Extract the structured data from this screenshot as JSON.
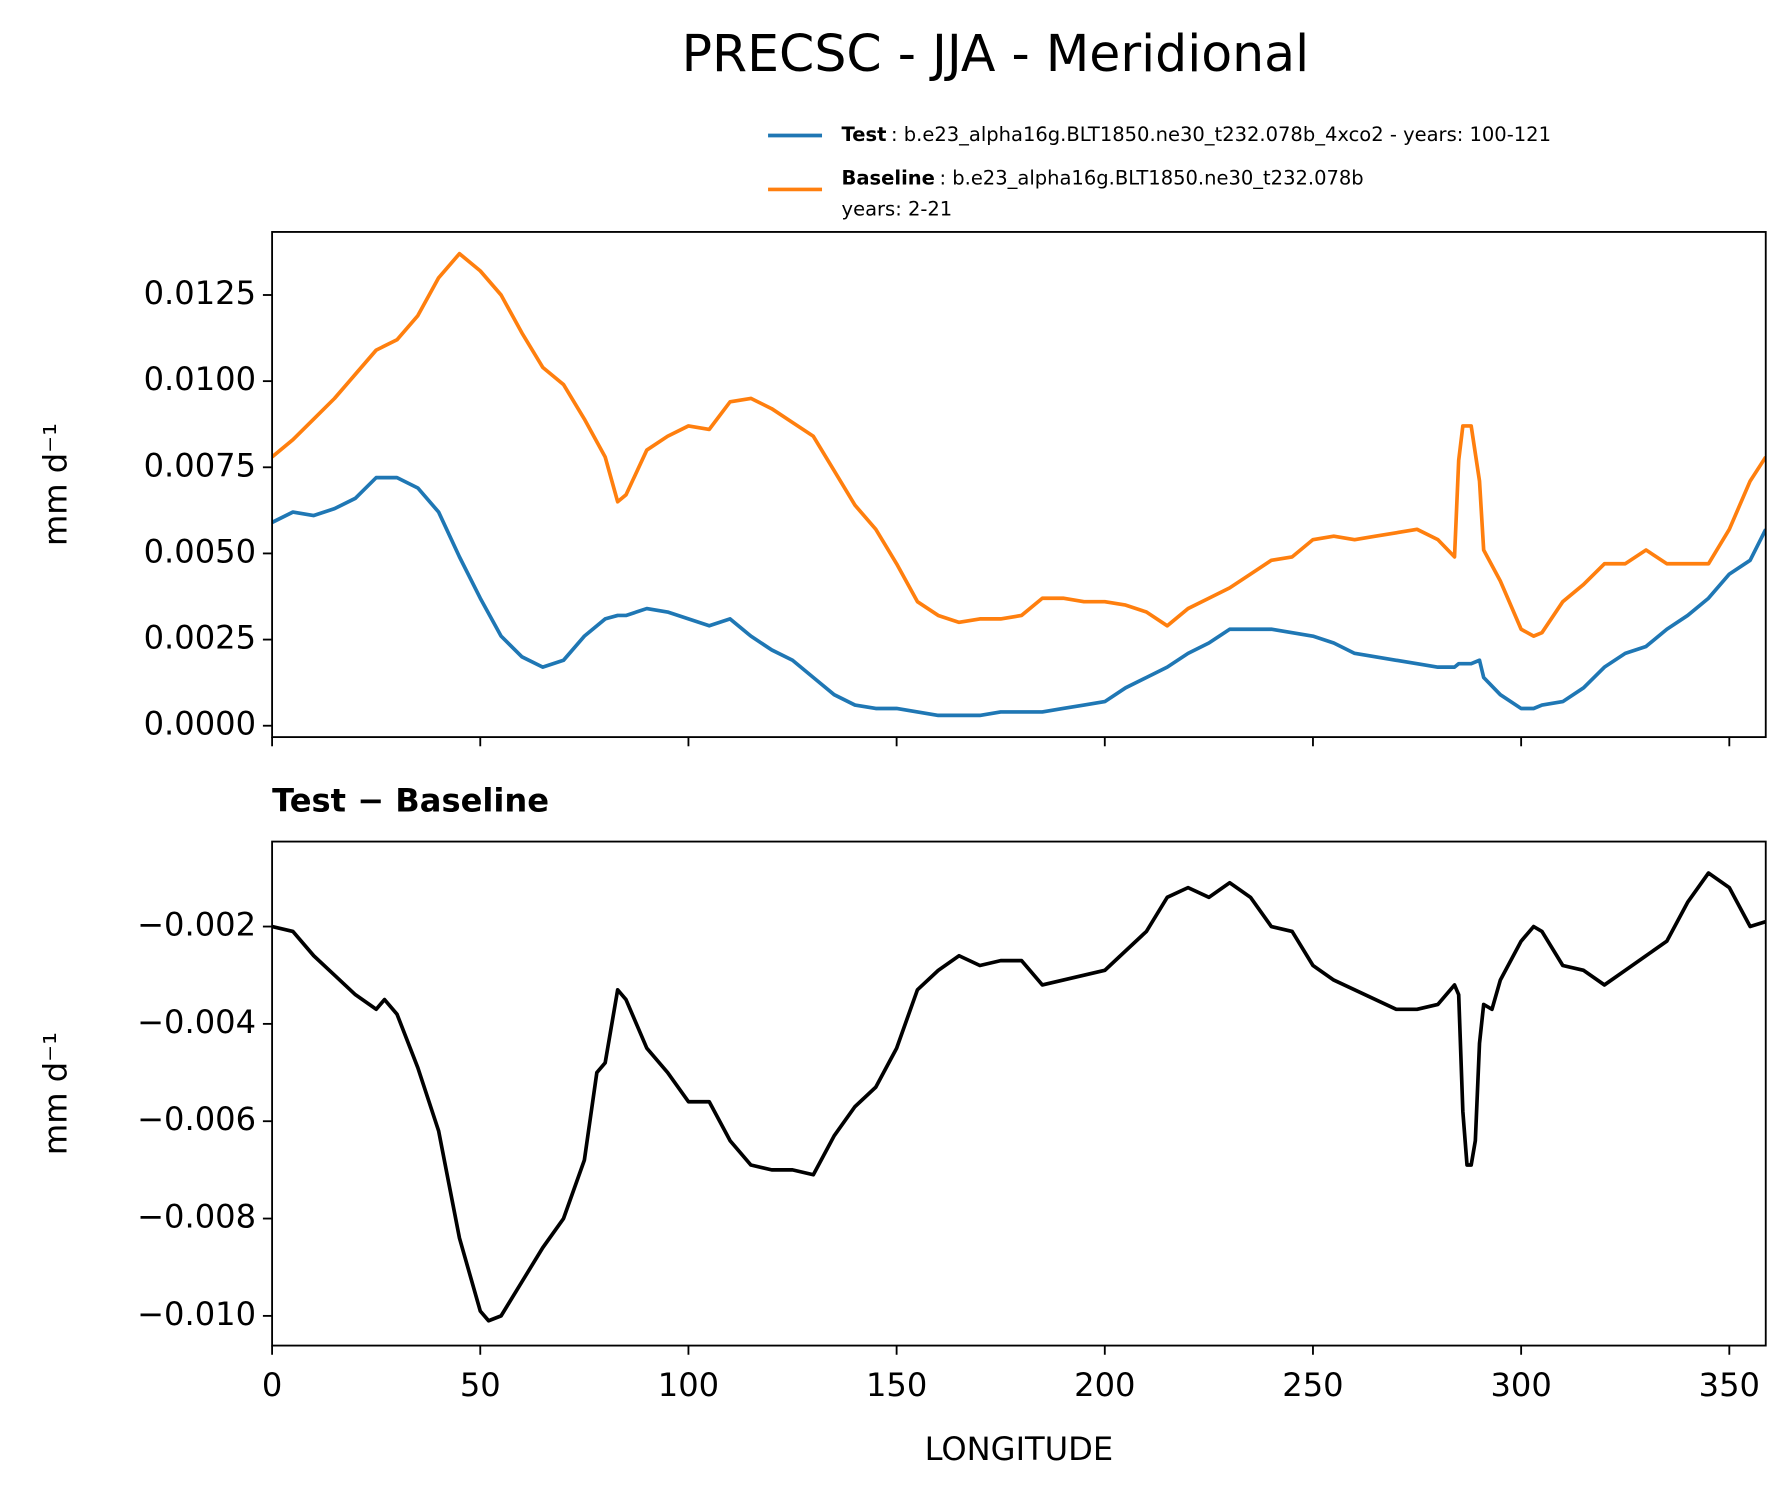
{
  "chart_data": [
    {
      "type": "line",
      "title": "PRECSC - JJA - Meridional",
      "ylabel": "mm d⁻¹",
      "x": [
        0,
        5,
        10,
        15,
        20,
        25,
        30,
        35,
        40,
        45,
        50,
        55,
        60,
        65,
        70,
        75,
        80,
        83,
        85,
        90,
        95,
        100,
        105,
        110,
        115,
        120,
        125,
        130,
        135,
        140,
        145,
        150,
        155,
        160,
        165,
        170,
        175,
        180,
        185,
        190,
        195,
        200,
        205,
        210,
        215,
        220,
        225,
        230,
        235,
        240,
        245,
        250,
        255,
        260,
        265,
        270,
        275,
        280,
        284,
        285,
        286,
        288,
        290,
        291,
        295,
        300,
        303,
        305,
        310,
        315,
        320,
        325,
        330,
        335,
        340,
        345,
        350,
        355,
        358.75
      ],
      "xlim": [
        0,
        358.75
      ],
      "ylim": [
        -0.00033,
        0.01433
      ],
      "yticks": [
        {
          "value": 0,
          "label": "0.0000"
        },
        0.0025,
        {
          "value": 0.005,
          "label": "0.0050"
        },
        0.0075,
        {
          "value": 0.01,
          "label": "0.0100"
        },
        0.0125
      ],
      "series": [
        {
          "name": "Test",
          "description": [
            ": b.e23_alpha16g.BLT1850.ne30_t232.078b_4xco2 - years: 100-121"
          ],
          "color": "#1f77b4",
          "values": [
            0.0059,
            0.0062,
            0.0061,
            0.0063,
            0.0066,
            0.0072,
            0.0072,
            0.0069,
            0.0062,
            0.0049,
            0.0037,
            0.0026,
            0.002,
            0.0017,
            0.0019,
            0.0026,
            0.0031,
            0.0032,
            0.0032,
            0.0034,
            0.0033,
            0.0031,
            0.0029,
            0.0031,
            0.0026,
            0.0022,
            0.0019,
            0.0014,
            0.0009,
            0.0006,
            0.0005,
            0.0005,
            0.0004,
            0.0003,
            0.0003,
            0.0003,
            0.0004,
            0.0004,
            0.0004,
            0.0005,
            0.0006,
            0.0007,
            0.0011,
            0.0014,
            0.0017,
            0.0021,
            0.0024,
            0.0028,
            0.0028,
            0.0028,
            0.0027,
            0.0026,
            0.0024,
            0.0021,
            0.002,
            0.0019,
            0.0018,
            0.0017,
            0.0017,
            0.0018,
            0.0018,
            0.0018,
            0.0019,
            0.0014,
            0.0009,
            0.0005,
            0.0005,
            0.0006,
            0.0007,
            0.0011,
            0.0017,
            0.0021,
            0.0023,
            0.0028,
            0.0032,
            0.0037,
            0.0044,
            0.0048,
            0.0057
          ]
        },
        {
          "name": "Baseline",
          "description": [
            ": b.e23_alpha16g.BLT1850.ne30_t232.078b",
            "years: 2-21"
          ],
          "color": "#ff7f0e",
          "values": [
            0.0078,
            0.0083,
            0.0089,
            0.0095,
            0.0102,
            0.0109,
            0.0112,
            0.0119,
            0.013,
            0.0137,
            0.0132,
            0.0125,
            0.0114,
            0.0104,
            0.0099,
            0.0089,
            0.0078,
            0.0065,
            0.0067,
            0.008,
            0.0084,
            0.0087,
            0.0086,
            0.0094,
            0.0095,
            0.0092,
            0.0088,
            0.0084,
            0.0074,
            0.0064,
            0.0057,
            0.0047,
            0.0036,
            0.0032,
            0.003,
            0.0031,
            0.0031,
            0.0032,
            0.0037,
            0.0037,
            0.0036,
            0.0036,
            0.0035,
            0.0033,
            0.0029,
            0.0034,
            0.0037,
            0.004,
            0.0044,
            0.0048,
            0.0049,
            0.0054,
            0.0055,
            0.0054,
            0.0055,
            0.0056,
            0.0057,
            0.0054,
            0.0049,
            0.0077,
            0.0087,
            0.0087,
            0.0071,
            0.0051,
            0.0042,
            0.0028,
            0.0026,
            0.0027,
            0.0036,
            0.0041,
            0.0047,
            0.0047,
            0.0051,
            0.0047,
            0.0047,
            0.0047,
            0.0057,
            0.0071,
            0.0078
          ]
        }
      ]
    },
    {
      "type": "line",
      "title": "Test − Baseline",
      "ylabel": "mm d⁻¹",
      "xlabel": "LONGITUDE",
      "x": [
        0,
        5,
        10,
        15,
        20,
        25,
        27,
        30,
        35,
        40,
        45,
        50,
        52,
        55,
        60,
        65,
        70,
        75,
        78,
        80,
        83,
        85,
        90,
        95,
        100,
        105,
        110,
        115,
        120,
        125,
        130,
        135,
        140,
        145,
        150,
        155,
        160,
        165,
        170,
        175,
        180,
        185,
        190,
        195,
        200,
        205,
        210,
        215,
        220,
        225,
        230,
        235,
        240,
        245,
        250,
        255,
        260,
        265,
        270,
        275,
        280,
        284,
        285,
        286,
        287,
        288,
        289,
        290,
        291,
        293,
        295,
        300,
        303,
        305,
        310,
        315,
        320,
        325,
        330,
        335,
        340,
        345,
        350,
        355,
        358.75
      ],
      "xlim": [
        0,
        358.75
      ],
      "xticks": [
        0,
        50,
        100,
        150,
        200,
        250,
        300,
        350
      ],
      "ylim": [
        -0.01061,
        -0.000254
      ],
      "yticks": [
        {
          "value": -0.002,
          "label": "−0.002"
        },
        {
          "value": -0.004,
          "label": "−0.004"
        },
        {
          "value": -0.006,
          "label": "−0.006"
        },
        {
          "value": -0.008,
          "label": "−0.008"
        },
        {
          "value": -0.01,
          "label": "−0.010"
        }
      ],
      "color": "#000000",
      "values": [
        -0.002,
        -0.0021,
        -0.0026,
        -0.003,
        -0.0034,
        -0.0037,
        -0.0035,
        -0.0038,
        -0.0049,
        -0.0062,
        -0.0084,
        -0.0099,
        -0.0101,
        -0.01,
        -0.0093,
        -0.0086,
        -0.008,
        -0.0068,
        -0.005,
        -0.0048,
        -0.0033,
        -0.0035,
        -0.0045,
        -0.005,
        -0.0056,
        -0.0056,
        -0.0064,
        -0.0069,
        -0.007,
        -0.007,
        -0.0071,
        -0.0063,
        -0.0057,
        -0.0053,
        -0.0045,
        -0.0033,
        -0.0029,
        -0.0026,
        -0.0028,
        -0.0027,
        -0.0027,
        -0.0032,
        -0.0031,
        -0.003,
        -0.0029,
        -0.0025,
        -0.0021,
        -0.0014,
        -0.0012,
        -0.0014,
        -0.0011,
        -0.0014,
        -0.002,
        -0.0021,
        -0.0028,
        -0.0031,
        -0.0033,
        -0.0035,
        -0.0037,
        -0.0037,
        -0.0036,
        -0.0032,
        -0.0034,
        -0.0058,
        -0.0069,
        -0.0069,
        -0.0064,
        -0.0044,
        -0.0036,
        -0.0037,
        -0.0031,
        -0.0023,
        -0.002,
        -0.0021,
        -0.0028,
        -0.0029,
        -0.0032,
        -0.0029,
        -0.0026,
        -0.0023,
        -0.0015,
        -0.0009,
        -0.0012,
        -0.002,
        -0.0019
      ]
    }
  ]
}
